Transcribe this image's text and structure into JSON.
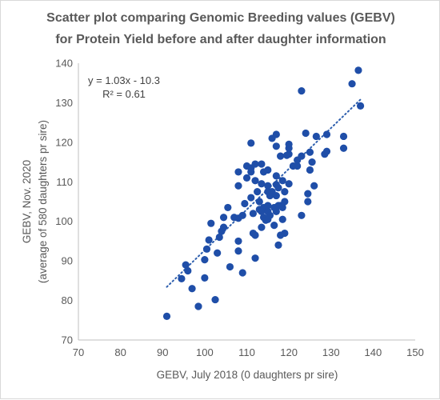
{
  "chart_data": {
    "type": "scatter",
    "title_lines": [
      "Scatter plot comparing Genomic Breeding values (GEBV)",
      "for Protein Yield before and after daughter information"
    ],
    "xlabel": "GEBV, July 2018 (0 daughters pr sire)",
    "ylabel_lines": [
      "GEBV, Nov. 2020",
      "(average of 580 daughters pr sire)"
    ],
    "xlim": [
      70,
      150
    ],
    "ylim": [
      70,
      140
    ],
    "xticks": [
      70,
      80,
      90,
      100,
      110,
      120,
      130,
      140,
      150
    ],
    "yticks": [
      70,
      80,
      90,
      100,
      110,
      120,
      130,
      140
    ],
    "grid": false,
    "legend": "none",
    "marker_color": "#1f4ea8",
    "trendline": {
      "style": "dotted",
      "color": "#2e5fae",
      "slope": 1.03,
      "intercept": -10.3,
      "x_range": [
        91,
        137
      ]
    },
    "annotations": {
      "equation": "y = 1.03x - 10.3",
      "r_squared": "R² = 0.61"
    },
    "points": [
      [
        91,
        76
      ],
      [
        94.5,
        85.5
      ],
      [
        95.5,
        89
      ],
      [
        96,
        87.5
      ],
      [
        97,
        83
      ],
      [
        98.5,
        78.5
      ],
      [
        100,
        85.7
      ],
      [
        100,
        90.3
      ],
      [
        100.5,
        93
      ],
      [
        101,
        95.3
      ],
      [
        101.5,
        99.5
      ],
      [
        102.5,
        80.2
      ],
      [
        103,
        92
      ],
      [
        103.5,
        96
      ],
      [
        104,
        97.5
      ],
      [
        104.5,
        98.5
      ],
      [
        104.5,
        101
      ],
      [
        105.5,
        103.5
      ],
      [
        106,
        88.5
      ],
      [
        107,
        101
      ],
      [
        108,
        92.5
      ],
      [
        108,
        95
      ],
      [
        108,
        100.8
      ],
      [
        108,
        109
      ],
      [
        108,
        112.5
      ],
      [
        109,
        87
      ],
      [
        109,
        101.5
      ],
      [
        109.5,
        104.5
      ],
      [
        110,
        111
      ],
      [
        110,
        114
      ],
      [
        111,
        106
      ],
      [
        111,
        112.5
      ],
      [
        111,
        113.5
      ],
      [
        111,
        119.8
      ],
      [
        111.5,
        97
      ],
      [
        111.5,
        102
      ],
      [
        112,
        90.7
      ],
      [
        112,
        96.5
      ],
      [
        112,
        110.3
      ],
      [
        112,
        114.5
      ],
      [
        112.5,
        107.5
      ],
      [
        113,
        103
      ],
      [
        113,
        105
      ],
      [
        113.5,
        98.5
      ],
      [
        113.5,
        102.5
      ],
      [
        113.5,
        109.5
      ],
      [
        113.5,
        114.5
      ],
      [
        114,
        101
      ],
      [
        114,
        103.5
      ],
      [
        114,
        112.5
      ],
      [
        114.5,
        100.3
      ],
      [
        115,
        100.5
      ],
      [
        115,
        102.5
      ],
      [
        115,
        104
      ],
      [
        115,
        107.5
      ],
      [
        115,
        109
      ],
      [
        115,
        113
      ],
      [
        115.5,
        101.5
      ],
      [
        115.5,
        106.5
      ],
      [
        116,
        107.5
      ],
      [
        116,
        121
      ],
      [
        116.5,
        99
      ],
      [
        116.5,
        103.5
      ],
      [
        117,
        102.5
      ],
      [
        117,
        106.5
      ],
      [
        117,
        109.3
      ],
      [
        117,
        111.5
      ],
      [
        117,
        119
      ],
      [
        117,
        122
      ],
      [
        117.5,
        94
      ],
      [
        117.5,
        104
      ],
      [
        117.5,
        108.5
      ],
      [
        118,
        96.5
      ],
      [
        118,
        104
      ],
      [
        118,
        116.5
      ],
      [
        118.5,
        100.5
      ],
      [
        118.5,
        103.5
      ],
      [
        118.5,
        110.3
      ],
      [
        119,
        97
      ],
      [
        119,
        105
      ],
      [
        119,
        107.5
      ],
      [
        119.5,
        116.7
      ],
      [
        120,
        109.5
      ],
      [
        120,
        117
      ],
      [
        120,
        118.5
      ],
      [
        120,
        119.5
      ],
      [
        121,
        114
      ],
      [
        122,
        114
      ],
      [
        122,
        115.5
      ],
      [
        123,
        101.5
      ],
      [
        123,
        116.5
      ],
      [
        123,
        133
      ],
      [
        124,
        122.3
      ],
      [
        124.5,
        105
      ],
      [
        124.5,
        107
      ],
      [
        125,
        113
      ],
      [
        125,
        117.5
      ],
      [
        125.5,
        115
      ],
      [
        126,
        109
      ],
      [
        126.5,
        121.5
      ],
      [
        128.5,
        117
      ],
      [
        129,
        117.7
      ],
      [
        129,
        122
      ],
      [
        133,
        121.5
      ],
      [
        133,
        118.5
      ],
      [
        135,
        134.8
      ],
      [
        136.5,
        138.2
      ],
      [
        137,
        129.2
      ]
    ]
  }
}
